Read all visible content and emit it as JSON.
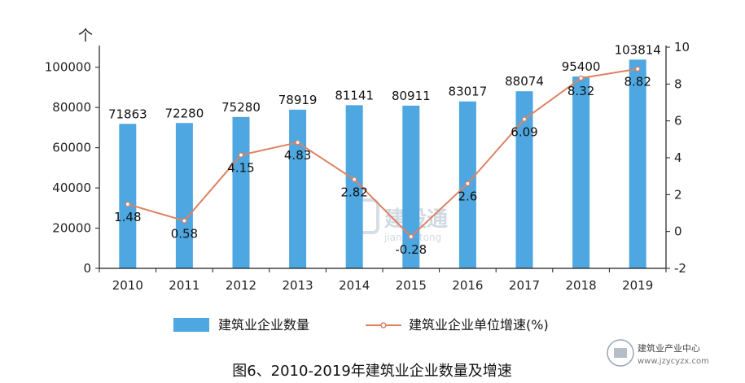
{
  "chart_data": {
    "type": "bar",
    "caption": "图6、2010-2019年建筑业企业数量及增速",
    "categories": [
      "2010",
      "2011",
      "2012",
      "2013",
      "2014",
      "2015",
      "2016",
      "2017",
      "2018",
      "2019"
    ],
    "series": [
      {
        "name": "建筑业企业数量",
        "type": "bar",
        "axis": "left",
        "values": [
          71863,
          72280,
          75280,
          78919,
          81141,
          80911,
          83017,
          88074,
          95400,
          103814
        ],
        "labels": [
          "71863",
          "72280",
          "75280",
          "78919",
          "81141",
          "80911",
          "83017",
          "88074",
          "95400",
          "103814"
        ]
      },
      {
        "name": "建筑业企业单位增速(%)",
        "type": "line",
        "axis": "right",
        "values": [
          1.48,
          0.58,
          4.15,
          4.83,
          2.82,
          -0.28,
          2.6,
          6.09,
          8.32,
          8.82
        ],
        "labels": [
          "1.48",
          "0.58",
          "4.15",
          "4.83",
          "2.82",
          "-0.28",
          "2.6",
          "6.09",
          "8.32",
          "8.82"
        ]
      }
    ],
    "y_left": {
      "unit": "个",
      "ylim": [
        0,
        110000
      ],
      "ticks": [
        0,
        20000,
        40000,
        60000,
        80000,
        100000
      ],
      "tick_labels": [
        "0",
        "20000",
        "40000",
        "60000",
        "80000",
        "100000"
      ]
    },
    "y_right": {
      "ylim": [
        -2,
        10
      ],
      "ticks": [
        -2,
        0,
        2,
        4,
        6,
        8,
        10
      ],
      "tick_labels": [
        "-2",
        "0",
        "2",
        "4",
        "6",
        "8",
        "10"
      ]
    },
    "grid": false,
    "legend_position": "bottom",
    "colors": {
      "bar": "#4ea7e0",
      "line": "#de8163",
      "marker_fill": "#ffffff",
      "axis": "#1f1f1f"
    }
  },
  "watermark": {
    "text": "建设通",
    "sub": "jianshetong"
  },
  "logo": {
    "name": "建筑业产业中心",
    "url": "www.jzycyzx.com"
  }
}
